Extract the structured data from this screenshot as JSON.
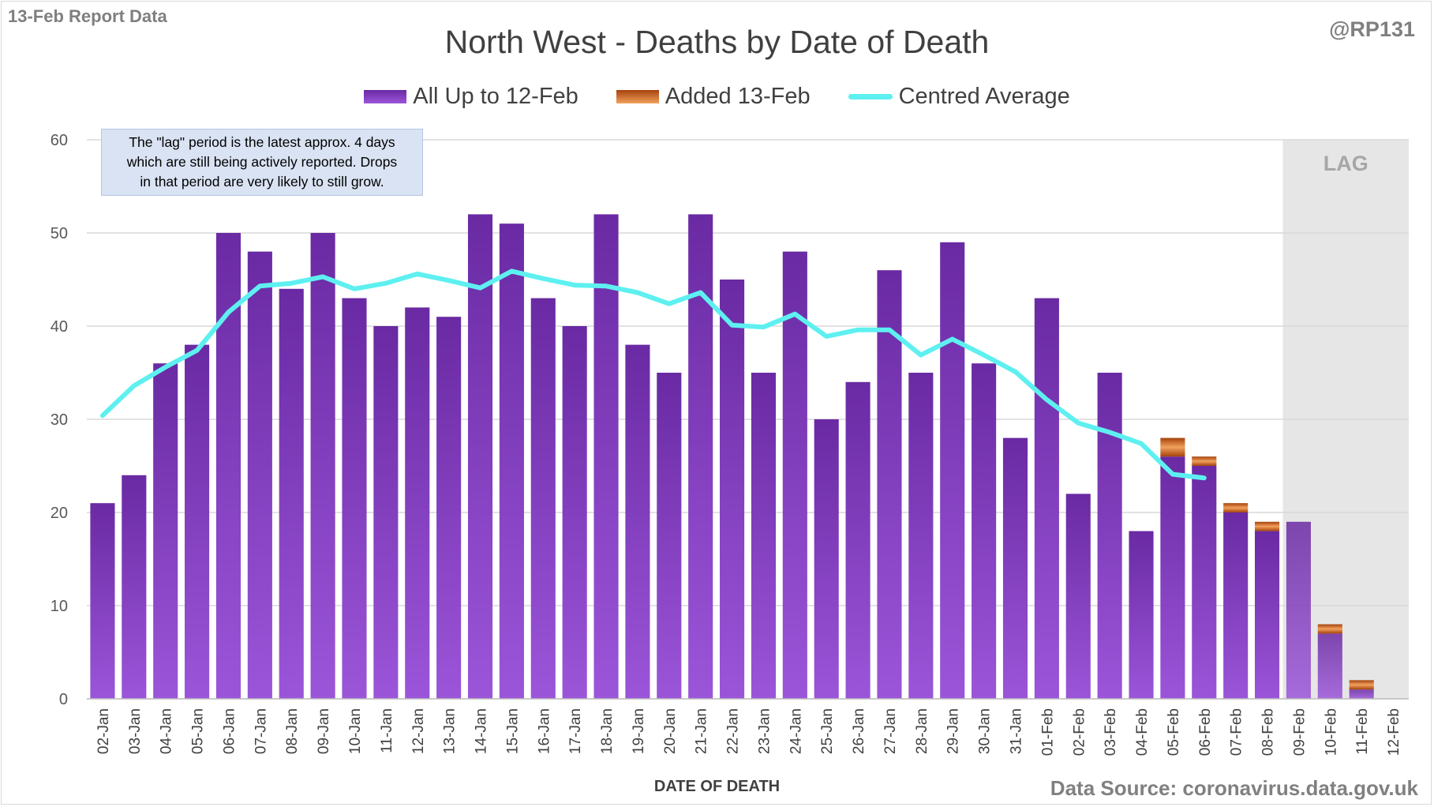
{
  "header": {
    "report_label": "13-Feb Report Data",
    "handle": "@RP131",
    "source": "Data Source: coronavirus.data.gov.uk"
  },
  "annotation": {
    "note_line1": "The \"lag\" period is the latest approx. 4 days",
    "note_line2": "which are still being actively reported. Drops",
    "note_line3": "in that period are very likely to still grow.",
    "lag_label": "LAG"
  },
  "colors": {
    "base_top": "#6a2aa3",
    "base_bottom": "#9b55d9",
    "added_dark": "#a4420c",
    "added_light": "#f2a05c",
    "average": "#5ef0f0",
    "lag_shade": "#e6e6e6",
    "grid": "#d9d9d9"
  },
  "chart_data": {
    "type": "bar",
    "title": "North West - Deaths by Date of Death",
    "xlabel": "DATE OF DEATH",
    "ylabel": "",
    "ylim": [
      0,
      60
    ],
    "yticks": [
      0,
      10,
      20,
      30,
      40,
      50,
      60
    ],
    "grid": true,
    "stacked": true,
    "legend_position": "top",
    "lag_categories": [
      "09-Feb",
      "10-Feb",
      "11-Feb",
      "12-Feb"
    ],
    "categories": [
      "02-Jan",
      "03-Jan",
      "04-Jan",
      "05-Jan",
      "06-Jan",
      "07-Jan",
      "08-Jan",
      "09-Jan",
      "10-Jan",
      "11-Jan",
      "12-Jan",
      "13-Jan",
      "14-Jan",
      "15-Jan",
      "16-Jan",
      "17-Jan",
      "18-Jan",
      "19-Jan",
      "20-Jan",
      "21-Jan",
      "22-Jan",
      "23-Jan",
      "24-Jan",
      "25-Jan",
      "26-Jan",
      "27-Jan",
      "28-Jan",
      "29-Jan",
      "30-Jan",
      "31-Jan",
      "01-Feb",
      "02-Feb",
      "03-Feb",
      "04-Feb",
      "05-Feb",
      "06-Feb",
      "07-Feb",
      "08-Feb",
      "09-Feb",
      "10-Feb",
      "11-Feb",
      "12-Feb"
    ],
    "series": [
      {
        "name": "All Up to 12-Feb",
        "kind": "bar",
        "values": [
          21,
          24,
          36,
          38,
          50,
          48,
          44,
          50,
          43,
          40,
          42,
          41,
          52,
          51,
          43,
          40,
          52,
          38,
          35,
          52,
          45,
          35,
          48,
          30,
          34,
          46,
          35,
          49,
          36,
          28,
          43,
          22,
          35,
          18,
          26,
          25,
          20,
          18,
          19,
          7,
          1,
          0
        ]
      },
      {
        "name": "Added 13-Feb",
        "kind": "bar",
        "values": [
          0,
          0,
          0,
          0,
          0,
          0,
          0,
          0,
          0,
          0,
          0,
          0,
          0,
          0,
          0,
          0,
          0,
          0,
          0,
          0,
          0,
          0,
          0,
          0,
          0,
          0,
          0,
          0,
          0,
          0,
          0,
          0,
          0,
          0,
          2,
          1,
          1,
          1,
          0,
          1,
          1,
          0
        ]
      },
      {
        "name": "Centred Average",
        "kind": "line",
        "values": [
          30.4,
          33.6,
          35.6,
          37.4,
          41.5,
          44.3,
          44.6,
          45.3,
          44.0,
          44.6,
          45.6,
          44.9,
          44.1,
          45.9,
          45.1,
          44.4,
          44.3,
          43.6,
          42.4,
          43.6,
          40.1,
          39.9,
          41.3,
          38.9,
          39.6,
          39.6,
          36.9,
          38.6,
          36.9,
          35.1,
          32.1,
          29.6,
          28.6,
          27.4,
          24.1,
          23.7,
          null,
          null,
          null,
          null,
          null,
          null
        ]
      }
    ]
  }
}
